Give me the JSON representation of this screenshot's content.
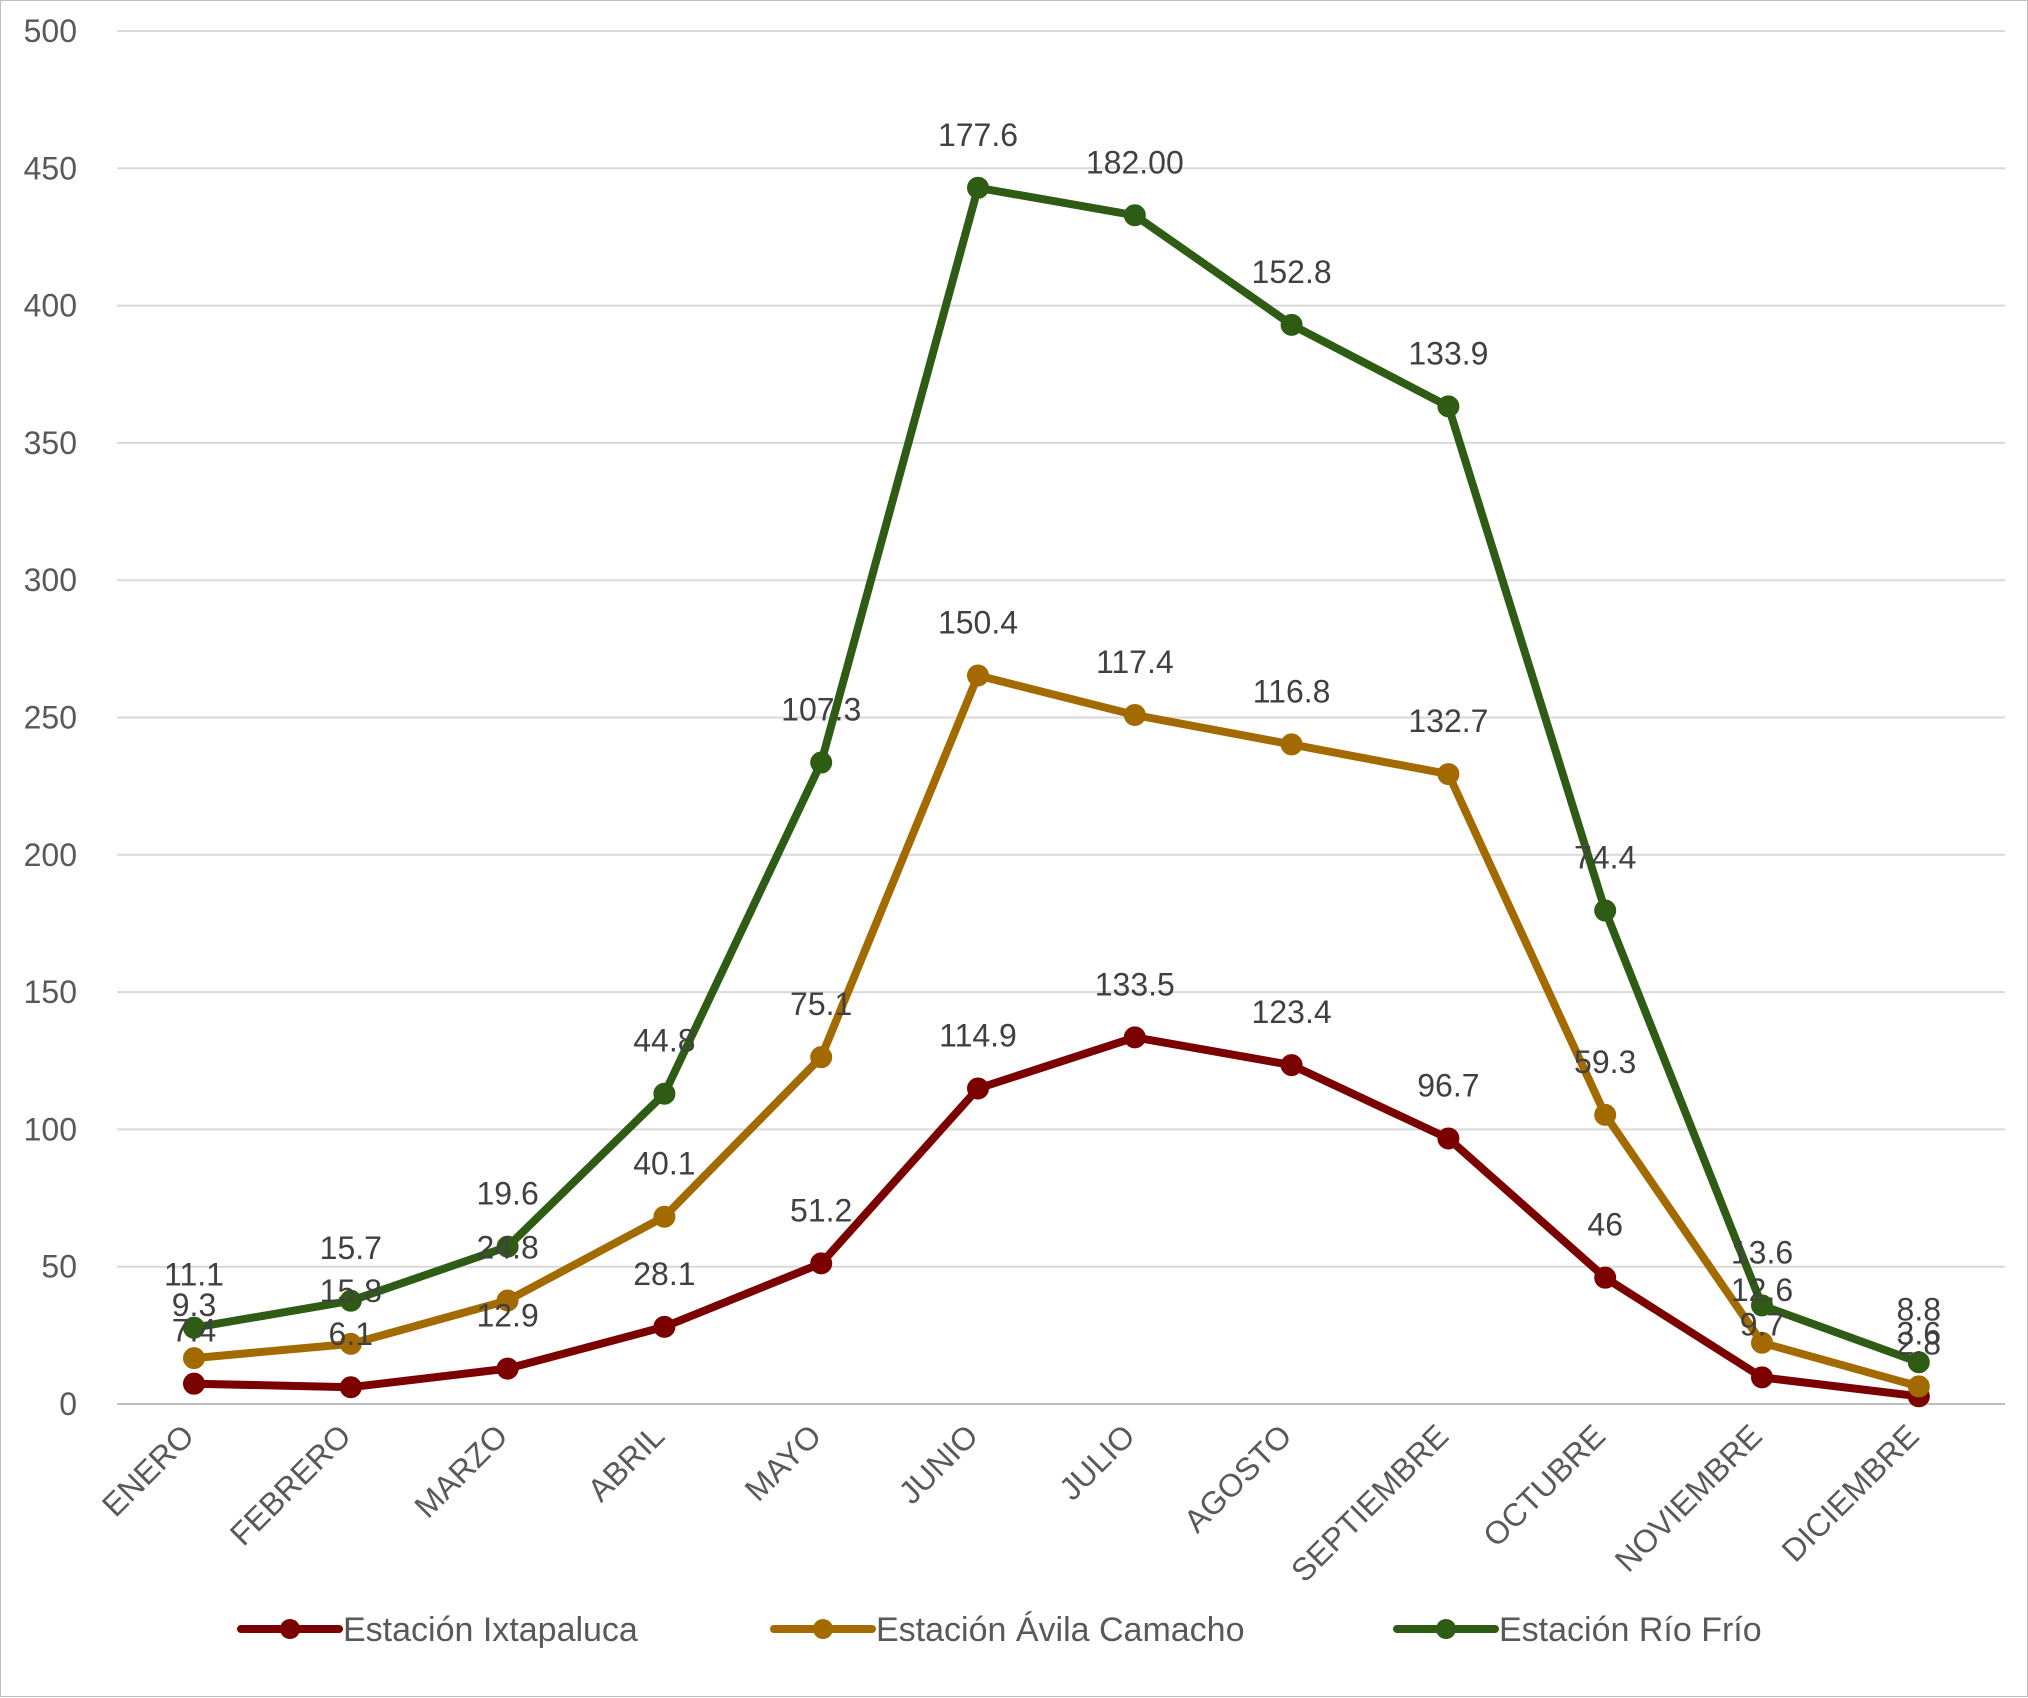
{
  "chart_data": {
    "type": "line",
    "stacked": true,
    "title": "",
    "xlabel": "",
    "ylabel": "",
    "ylim": [
      0,
      500
    ],
    "yticks": [
      0,
      50,
      100,
      150,
      200,
      250,
      300,
      350,
      400,
      450,
      500
    ],
    "grid": true,
    "legend": "bottom",
    "categories": [
      "ENERO",
      "FEBRERO",
      "MARZO",
      "ABRIL",
      "MAYO",
      "JUNIO",
      "JULIO",
      "AGOSTO",
      "SEPTIEMBRE",
      "OCTUBRE",
      "NOVIEMBRE",
      "DICIEMBRE"
    ],
    "series": [
      {
        "name": "Estación Ixtapaluca",
        "color": "#7b0000",
        "values": [
          7.4,
          6.1,
          12.9,
          28.1,
          51.2,
          114.9,
          133.5,
          123.4,
          96.7,
          46,
          9.7,
          2.8
        ],
        "labels": [
          "7.4",
          "6.1",
          "12.9",
          "28.1",
          "51.2",
          "114.9",
          "133.5",
          "123.4",
          "96.7",
          "46",
          "9.7",
          "2.8"
        ]
      },
      {
        "name": "Estación Ávila Camacho",
        "color": "#a36a00",
        "values": [
          9.3,
          15.8,
          24.8,
          40.1,
          75.1,
          150.4,
          117.4,
          116.8,
          132.7,
          59.3,
          12.6,
          3.6
        ],
        "labels": [
          "9.3",
          "15.8",
          "24.8",
          "40.1",
          "75.1",
          "150.4",
          "117.4",
          "116.8",
          "132.7",
          "59.3",
          "12.6",
          "3.6"
        ]
      },
      {
        "name": "Estación Río Frío",
        "color": "#2e5c14",
        "values": [
          11.1,
          15.7,
          19.6,
          44.8,
          107.3,
          177.6,
          182.0,
          152.8,
          133.9,
          74.4,
          13.6,
          8.8
        ],
        "labels": [
          "11.1",
          "15.7",
          "19.6",
          "44.8",
          "107.3",
          "177.6",
          "182.00",
          "152.8",
          "133.9",
          "74.4",
          "13.6",
          "8.8"
        ]
      }
    ]
  }
}
